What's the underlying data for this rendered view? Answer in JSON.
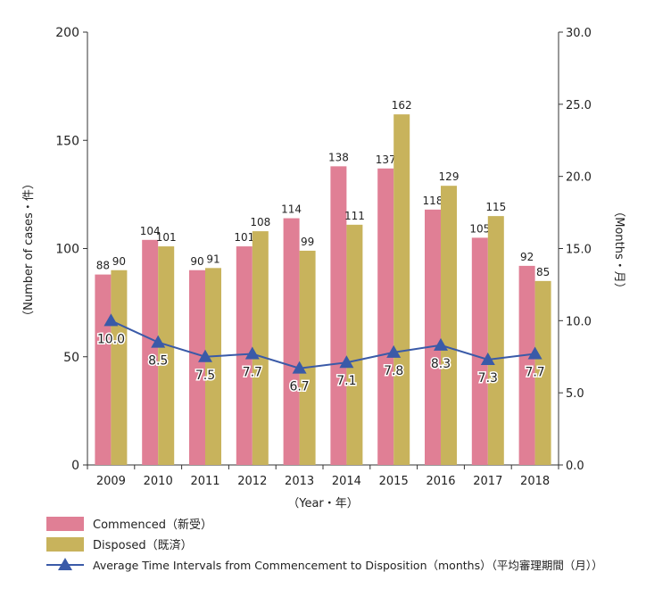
{
  "chart_data": {
    "type": "bar",
    "categories": [
      "2009",
      "2010",
      "2011",
      "2012",
      "2013",
      "2014",
      "2015",
      "2016",
      "2017",
      "2018"
    ],
    "series": [
      {
        "name": "Commenced（新受）",
        "type": "bar",
        "axis": "left",
        "color": "#e07f95",
        "values": [
          88,
          104,
          90,
          101,
          114,
          138,
          137,
          118,
          105,
          92
        ]
      },
      {
        "name": "Disposed（既済）",
        "type": "bar",
        "axis": "left",
        "color": "#c8b35c",
        "values": [
          90,
          101,
          91,
          108,
          99,
          111,
          162,
          129,
          115,
          85
        ]
      },
      {
        "name": "Average Time Intervals from Commencement to Disposition（months）（平均審理期間（月））",
        "type": "line",
        "axis": "right",
        "color": "#3a5aa8",
        "values": [
          10.0,
          8.5,
          7.5,
          7.7,
          6.7,
          7.1,
          7.8,
          8.3,
          7.3,
          7.7
        ],
        "labels": [
          "10.0",
          "8.5",
          "7.5",
          "7.7",
          "6.7",
          "7.1",
          "7.8",
          "8.3",
          "7.3",
          "7.7"
        ]
      }
    ],
    "xlabel": "（Year・年）",
    "ylabel": "（Number of cases・件）",
    "y2label": "（Months・月）",
    "ylim": [
      0,
      200
    ],
    "y2lim": [
      0,
      30
    ],
    "yticks": [
      "0",
      "50",
      "100",
      "150",
      "200"
    ],
    "y2ticks": [
      "0.0",
      "5.0",
      "10.0",
      "15.0",
      "20.0",
      "25.0",
      "30.0"
    ],
    "grid": false,
    "legend_position": "bottom-left"
  }
}
